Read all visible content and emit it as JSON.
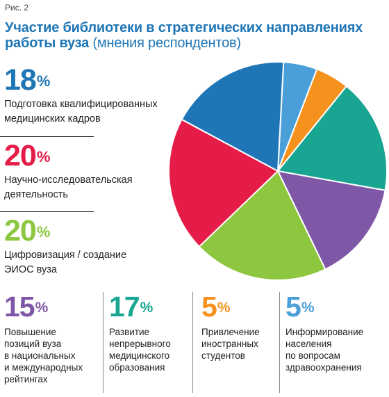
{
  "figure_label": "Рис. 2",
  "title": {
    "main": "Участие библиотеки в стратегических направлениях работы вуза",
    "subtitle": "(мнения респондентов)"
  },
  "chart_data": {
    "type": "pie",
    "title": "Участие библиотеки в стратегических направлениях работы вуза (мнения респондентов)",
    "slices": [
      {
        "label": "Подготовка квалифицированных медицинских кадров",
        "value": 18,
        "pct_text": "18",
        "color": "#1f76b6"
      },
      {
        "label": "Научно-исследовательская деятельность",
        "value": 20,
        "pct_text": "20",
        "color": "#e51c48"
      },
      {
        "label": "Цифровизация / создание ЭИОС вуза",
        "value": 20,
        "pct_text": "20",
        "color": "#8dc63f"
      },
      {
        "label": "Повышение позиций вуза в национальных и международных рейтингах",
        "value": 15,
        "pct_text": "15",
        "color": "#7e57a7"
      },
      {
        "label": "Развитие непрерывного медицинского образования",
        "value": 17,
        "pct_text": "17",
        "color": "#18a592"
      },
      {
        "label": "Привлечение иностранных студентов",
        "value": 5,
        "pct_text": "5",
        "color": "#f5921e"
      },
      {
        "label": "Информирование населения по вопросам здравоохранения",
        "value": 5,
        "pct_text": "5",
        "color": "#4a9fd8"
      }
    ],
    "percent_sign": "%"
  },
  "side_legend": [
    {
      "pct": "18",
      "sign": "%",
      "line1": "Подготовка квалифицированных",
      "line2": "медицинских кадров",
      "color": "#1f76b6"
    },
    {
      "pct": "20",
      "sign": "%",
      "line1": "Научно-исследовательская",
      "line2": "деятельность",
      "color": "#e51c48"
    },
    {
      "pct": "20",
      "sign": "%",
      "line1": "Цифровизация / создание",
      "line2": "ЭИОС вуза",
      "color": "#8dc63f"
    }
  ],
  "bottom_legend": [
    {
      "pct": "15",
      "sign": "%",
      "lines": [
        "Повышение",
        "позиций вуза",
        "в национальных",
        "и международных",
        "рейтингах"
      ],
      "color": "#7e57a7"
    },
    {
      "pct": "17",
      "sign": "%",
      "lines": [
        "Развитие",
        "непрерывного",
        "медицинского",
        "образования"
      ],
      "color": "#18a592"
    },
    {
      "pct": "5",
      "sign": "%",
      "lines": [
        "Привлечение",
        "иностранных",
        "студентов"
      ],
      "color": "#f5921e"
    },
    {
      "pct": "5",
      "sign": "%",
      "lines": [
        "Информирование",
        "населения",
        "по вопросам",
        "здравоохранения"
      ],
      "color": "#4a9fd8"
    }
  ]
}
